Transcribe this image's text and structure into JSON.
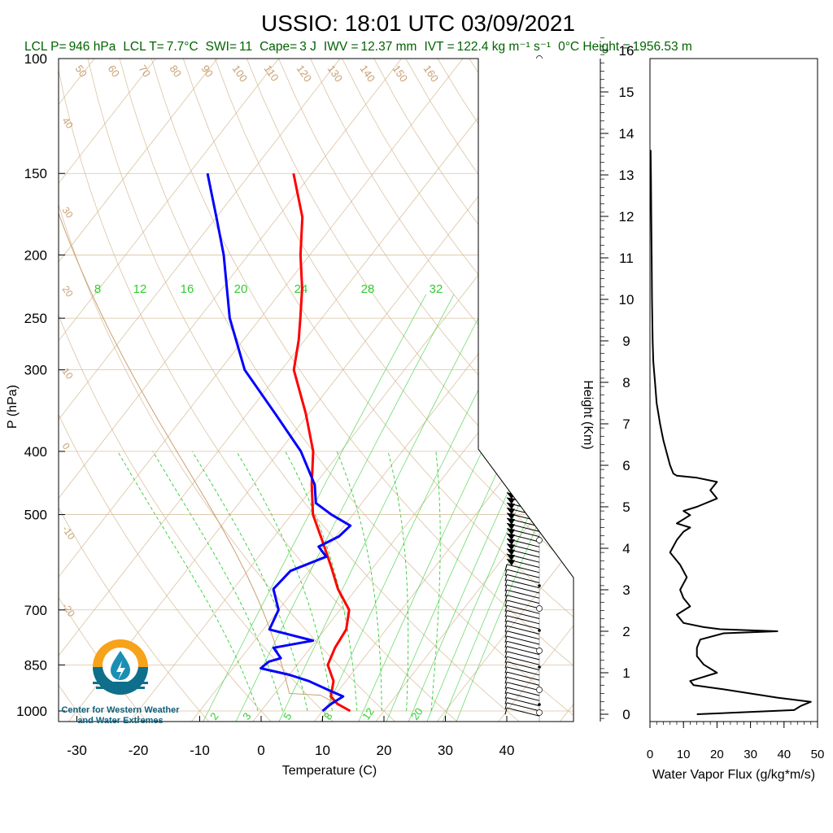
{
  "header": {
    "title": "USSIO: 18:01 UTC 03/09/2021",
    "stats": [
      {
        "label": "LCL P=",
        "value": "946 hPa"
      },
      {
        "label": "LCL T=",
        "value": "7.7°C"
      },
      {
        "label": "SWI=",
        "value": "11"
      },
      {
        "label": "Cape=",
        "value": "3 J"
      },
      {
        "label": "IWV =",
        "value": "12.37 mm"
      },
      {
        "label": "IVT =",
        "value": "122.4 kg m⁻¹ s⁻¹"
      },
      {
        "label": "0°C Height =",
        "value": "1956.53 m"
      }
    ]
  },
  "logo": {
    "line1": "Center for Western Weather",
    "line2": "and Water Extremes"
  },
  "colors": {
    "temperature": "#ff0000",
    "dewpoint": "#0000ff",
    "mixing_ratio": "#33cc33",
    "isotherm": "#d2b48c",
    "stats_text": "#006400",
    "flux": "#000000"
  },
  "chart_data": [
    {
      "type": "line",
      "name": "skew-t",
      "xlabel": "Temperature (C)",
      "ylabel": "P (hPa)",
      "x_ticks": [
        -30,
        -20,
        -10,
        0,
        10,
        20,
        30,
        40
      ],
      "y_ticks": [
        1000,
        850,
        700,
        500,
        400,
        300,
        250,
        200,
        150,
        100
      ],
      "xlim": [
        -34,
        50
      ],
      "ylim": [
        1050,
        100
      ],
      "isotherm_labels": [
        -40,
        -30,
        -20,
        -10,
        0,
        10,
        20,
        30
      ],
      "dry_adiabat_labels": [
        50,
        60,
        70,
        80,
        90,
        100,
        110,
        120,
        130,
        140,
        150,
        160,
        40,
        30,
        20,
        10,
        0,
        -10,
        -20
      ],
      "mixing_ratio_labels_top": [
        8,
        12,
        16,
        20,
        24,
        28,
        32
      ],
      "mixing_ratio_labels_bottom": [
        2,
        3,
        5,
        8,
        12,
        20
      ],
      "series": [
        {
          "name": "Temperature",
          "p": [
            1000,
            975,
            950,
            900,
            850,
            800,
            750,
            700,
            650,
            600,
            550,
            500,
            450,
            400,
            350,
            300,
            270,
            250,
            225,
            200,
            175,
            150
          ],
          "t": [
            14.5,
            11.5,
            9.5,
            8.0,
            5.0,
            4.0,
            3.5,
            1.5,
            -3.0,
            -7.0,
            -11.5,
            -16.5,
            -20.5,
            -24.5,
            -30.5,
            -38.0,
            -41.0,
            -43.5,
            -47.0,
            -51.5,
            -56.0,
            -63.0
          ]
        },
        {
          "name": "Dewpoint",
          "p": [
            1000,
            975,
            950,
            930,
            900,
            880,
            860,
            840,
            830,
            800,
            780,
            750,
            700,
            650,
            610,
            580,
            560,
            540,
            520,
            500,
            480,
            450,
            400,
            350,
            300,
            250,
            200,
            175,
            150
          ],
          "t": [
            10.0,
            10.5,
            11.5,
            8.5,
            4.0,
            0.0,
            -5.5,
            -5.0,
            -3.5,
            -6.0,
            -0.5,
            -9.0,
            -10.0,
            -13.5,
            -13.0,
            -9.0,
            -11.5,
            -9.5,
            -9.0,
            -13.5,
            -17.5,
            -20.0,
            -26.5,
            -35.5,
            -46.0,
            -55.0,
            -64.0,
            -70.0,
            -77.0
          ]
        }
      ]
    },
    {
      "type": "line",
      "name": "water-vapor-flux",
      "xlabel": "Water Vapor Flux (g/kg*m/s)",
      "ylabel": "Height (Km)",
      "x_ticks": [
        0,
        10,
        20,
        30,
        40,
        50
      ],
      "y_ticks": [
        0,
        1,
        2,
        3,
        4,
        5,
        6,
        7,
        8,
        9,
        10,
        11,
        12,
        13,
        14,
        15,
        16
      ],
      "xlim": [
        0,
        50
      ],
      "ylim": [
        -0.2,
        16.5
      ],
      "series": [
        {
          "name": "flux",
          "h": [
            0.0,
            0.1,
            0.2,
            0.3,
            0.4,
            0.5,
            0.6,
            0.7,
            0.8,
            1.0,
            1.2,
            1.4,
            1.6,
            1.8,
            1.95,
            2.0,
            2.05,
            2.1,
            2.2,
            2.4,
            2.6,
            2.8,
            3.0,
            3.3,
            3.6,
            3.9,
            4.2,
            4.4,
            4.5,
            4.6,
            4.7,
            4.8,
            4.9,
            5.0,
            5.2,
            5.4,
            5.6,
            5.7,
            5.75,
            5.8,
            6.0,
            6.3,
            6.6,
            7.0,
            7.5,
            8.0,
            8.5,
            9.0,
            10.0,
            11.0,
            12.0,
            13.0,
            13.6
          ],
          "f": [
            14,
            43,
            45,
            48,
            38,
            30,
            22,
            13,
            12,
            20,
            16,
            14,
            14,
            15,
            22,
            38,
            21,
            16,
            10,
            8,
            12,
            10,
            9,
            11,
            9,
            6,
            8,
            10,
            12,
            8,
            10,
            12,
            10,
            14,
            20,
            18,
            20,
            14,
            8,
            7,
            6,
            5,
            4,
            3,
            2,
            1.5,
            1,
            0.8,
            0.6,
            0.5,
            0.4,
            0.3,
            0.2
          ]
        }
      ]
    }
  ]
}
